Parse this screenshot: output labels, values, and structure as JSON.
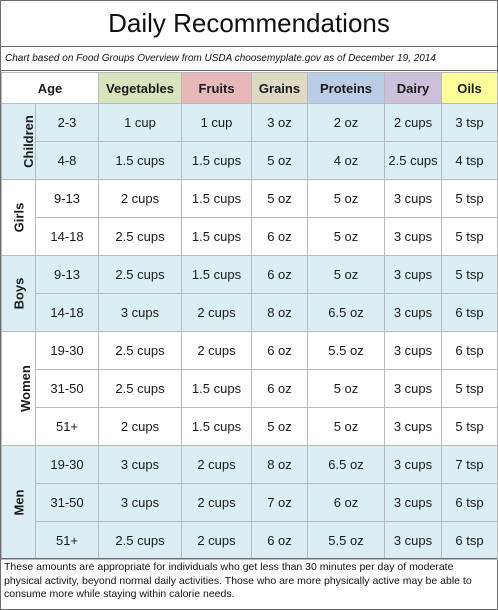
{
  "title": "Daily Recommendations",
  "subtitle": "Chart based on Food Groups Overview from USDA choosemyplate.gov as of December 19, 2014",
  "headers": {
    "age": "Age",
    "vegetables": "Vegetables",
    "fruits": "Fruits",
    "grains": "Grains",
    "proteins": "Proteins",
    "dairy": "Dairy",
    "oils": "Oils"
  },
  "header_colors": {
    "vegetables": "#d7e4bd",
    "fruits": "#e6b9b8",
    "grains": "#ddd9c3",
    "proteins": "#b9cde5",
    "dairy": "#ccc0da",
    "oils": "#ffff99",
    "row_band": "#daeef3"
  },
  "groups": [
    {
      "name": "Children",
      "rows": [
        {
          "age": "2-3",
          "vegetables": "1 cup",
          "fruits": "1 cup",
          "grains": "3 oz",
          "proteins": "2 oz",
          "dairy": "2 cups",
          "oils": "3 tsp"
        },
        {
          "age": "4-8",
          "vegetables": "1.5 cups",
          "fruits": "1.5 cups",
          "grains": "5 oz",
          "proteins": "4 oz",
          "dairy": "2.5 cups",
          "oils": "4 tsp"
        }
      ]
    },
    {
      "name": "Girls",
      "rows": [
        {
          "age": "9-13",
          "vegetables": "2 cups",
          "fruits": "1.5 cups",
          "grains": "5 oz",
          "proteins": "5 oz",
          "dairy": "3 cups",
          "oils": "5 tsp"
        },
        {
          "age": "14-18",
          "vegetables": "2.5 cups",
          "fruits": "1.5 cups",
          "grains": "6 oz",
          "proteins": "5 oz",
          "dairy": "3 cups",
          "oils": "5 tsp"
        }
      ]
    },
    {
      "name": "Boys",
      "rows": [
        {
          "age": "9-13",
          "vegetables": "2.5 cups",
          "fruits": "1.5 cups",
          "grains": "6 oz",
          "proteins": "5 oz",
          "dairy": "3 cups",
          "oils": "5 tsp"
        },
        {
          "age": "14-18",
          "vegetables": "3 cups",
          "fruits": "2 cups",
          "grains": "8 oz",
          "proteins": "6.5 oz",
          "dairy": "3 cups",
          "oils": "6 tsp"
        }
      ]
    },
    {
      "name": "Women",
      "rows": [
        {
          "age": "19-30",
          "vegetables": "2.5 cups",
          "fruits": "2 cups",
          "grains": "6 oz",
          "proteins": "5.5 oz",
          "dairy": "3 cups",
          "oils": "6 tsp"
        },
        {
          "age": "31-50",
          "vegetables": "2.5 cups",
          "fruits": "1.5 cups",
          "grains": "6 oz",
          "proteins": "5 oz",
          "dairy": "3 cups",
          "oils": "5 tsp"
        },
        {
          "age": "51+",
          "vegetables": "2 cups",
          "fruits": "1.5 cups",
          "grains": "5 oz",
          "proteins": "5 oz",
          "dairy": "3 cups",
          "oils": "5 tsp"
        }
      ]
    },
    {
      "name": "Men",
      "rows": [
        {
          "age": "19-30",
          "vegetables": "3 cups",
          "fruits": "2 cups",
          "grains": "8 oz",
          "proteins": "6.5 oz",
          "dairy": "3 cups",
          "oils": "7 tsp"
        },
        {
          "age": "31-50",
          "vegetables": "3 cups",
          "fruits": "2 cups",
          "grains": "7 oz",
          "proteins": "6 oz",
          "dairy": "3 cups",
          "oils": "6 tsp"
        },
        {
          "age": "51+",
          "vegetables": "2.5 cups",
          "fruits": "2 cups",
          "grains": "6 oz",
          "proteins": "5.5 oz",
          "dairy": "3 cups",
          "oils": "6 tsp"
        }
      ]
    }
  ],
  "footnote": "These amounts are appropriate for individuals who get less than 30 minutes per day of moderate physical activity, beyond normal daily activities. Those who are more physically active may be able to consume more while staying within calorie needs."
}
